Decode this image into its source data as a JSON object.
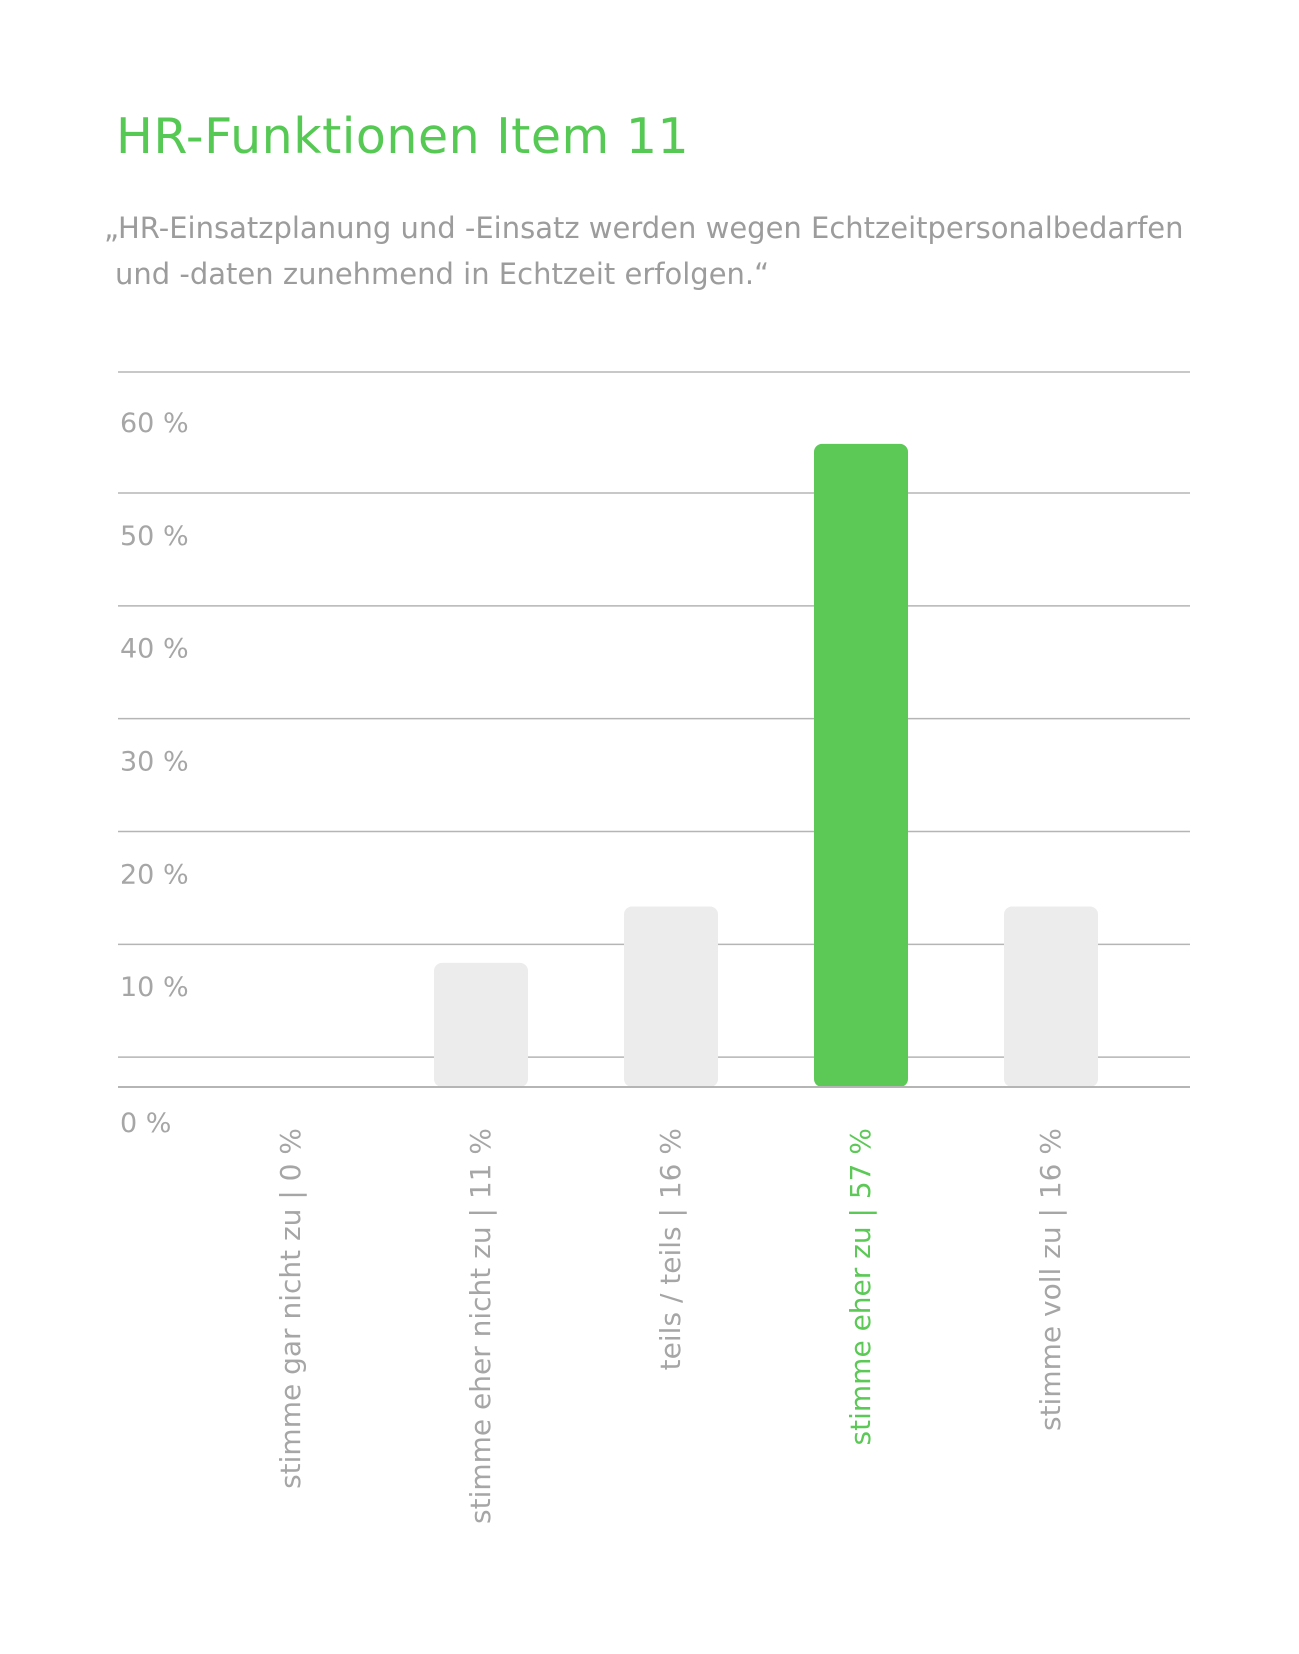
{
  "chart_data": {
    "type": "bar",
    "title": "HR-Funktionen Item 11",
    "subtitle_line1": "„HR-Einsatzplanung und -Einsatz werden wegen Echtzeitpersonalbedarfen",
    "subtitle_line2": "und -daten zunehmend in Echtzeit erfolgen.“",
    "categories": [
      "stimme gar nicht zu",
      "stimme eher nicht zu",
      "teils / teils",
      "stimme eher zu",
      "stimme voll zu"
    ],
    "value_labels": [
      "0 %",
      "11 %",
      "16 %",
      "57 %",
      "16 %"
    ],
    "values": [
      0,
      11,
      16,
      57,
      16
    ],
    "highlight_index": 3,
    "ylim": [
      0,
      60
    ],
    "yticks": [
      0,
      10,
      20,
      30,
      40,
      50,
      60
    ],
    "ytick_labels": [
      "0 %",
      "10 %",
      "20 %",
      "30 %",
      "40 %",
      "50 %",
      "60 %"
    ],
    "grid": true,
    "colors": {
      "title": "#55c954",
      "highlight": "#5cc957",
      "bar": "#ececec",
      "grid": "#b5b5b5",
      "text": "#a6a6a6"
    }
  }
}
